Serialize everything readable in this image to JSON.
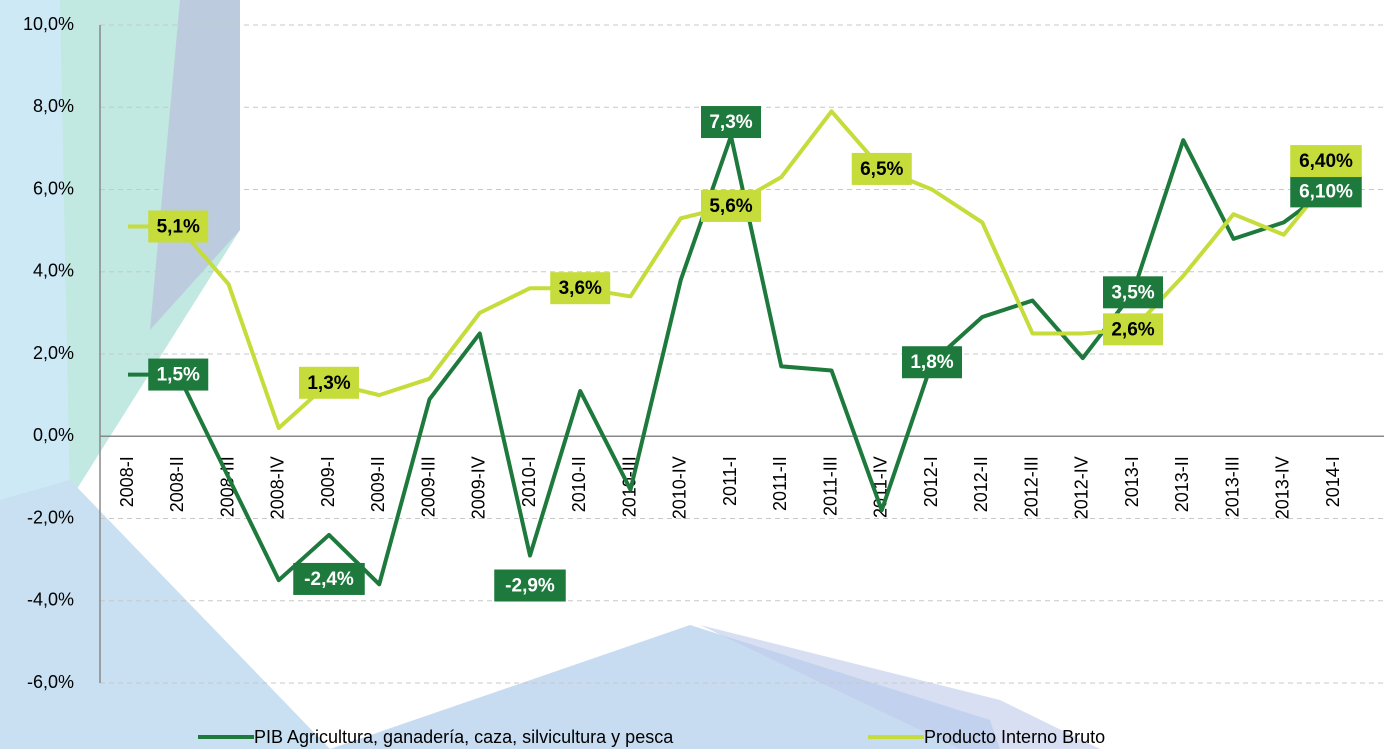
{
  "chart_data": {
    "type": "line",
    "categories": [
      "2008-I",
      "2008-II",
      "2008-III",
      "2008-IV",
      "2009-I",
      "2009-II",
      "2009-III",
      "2009-IV",
      "2010-I",
      "2010-II",
      "2010-III",
      "2010-IV",
      "2011-I",
      "2011-II",
      "2011-III",
      "2011-IV",
      "2012-I",
      "2012-II",
      "2012-III",
      "2012-IV",
      "2013-I",
      "2013-II",
      "2013-III",
      "2013-IV",
      "2014-I"
    ],
    "series": [
      {
        "name": "PIB Agricultura, ganadería, caza, silvicultura y pesca",
        "color": "#1e7a3c",
        "values": [
          1.5,
          1.5,
          -1.0,
          -3.5,
          -2.4,
          -3.6,
          0.9,
          2.5,
          -2.9,
          1.1,
          -1.3,
          3.8,
          7.3,
          1.7,
          1.6,
          -1.8,
          1.8,
          2.9,
          3.3,
          1.9,
          3.5,
          7.2,
          4.8,
          5.2,
          6.1
        ],
        "value_labels": [
          null,
          "1,5%",
          null,
          null,
          "-2,4%",
          null,
          null,
          null,
          "-2,9%",
          null,
          null,
          null,
          "7,3%",
          null,
          null,
          null,
          "1,8%",
          null,
          null,
          null,
          "3,5%",
          null,
          null,
          null,
          "6,10%"
        ]
      },
      {
        "name": "Producto Interno Bruto",
        "color": "#c5dc3a",
        "values": [
          5.1,
          5.1,
          3.7,
          0.2,
          1.3,
          1.0,
          1.4,
          3.0,
          3.6,
          3.6,
          3.4,
          5.3,
          5.6,
          6.3,
          7.9,
          6.5,
          6.0,
          5.2,
          2.5,
          2.5,
          2.6,
          3.9,
          5.4,
          4.9,
          6.4
        ],
        "value_labels": [
          null,
          "5,1%",
          null,
          null,
          "1,3%",
          null,
          null,
          null,
          null,
          "3,6%",
          null,
          null,
          "5,6%",
          null,
          null,
          "6,5%",
          null,
          null,
          null,
          null,
          "2,6%",
          null,
          null,
          null,
          "6,40%"
        ]
      }
    ],
    "ylim": [
      -6,
      10
    ],
    "yticks": [
      {
        "value": -6,
        "label": "-6,0%"
      },
      {
        "value": -4,
        "label": "-4,0%"
      },
      {
        "value": -2,
        "label": "-2,0%"
      },
      {
        "value": 0,
        "label": "0,0%"
      },
      {
        "value": 2,
        "label": "2,0%"
      },
      {
        "value": 4,
        "label": "4,0%"
      },
      {
        "value": 6,
        "label": "6,0%"
      },
      {
        "value": 8,
        "label": "8,0%"
      },
      {
        "value": 10,
        "label": "10,0%"
      }
    ],
    "grid": true
  }
}
